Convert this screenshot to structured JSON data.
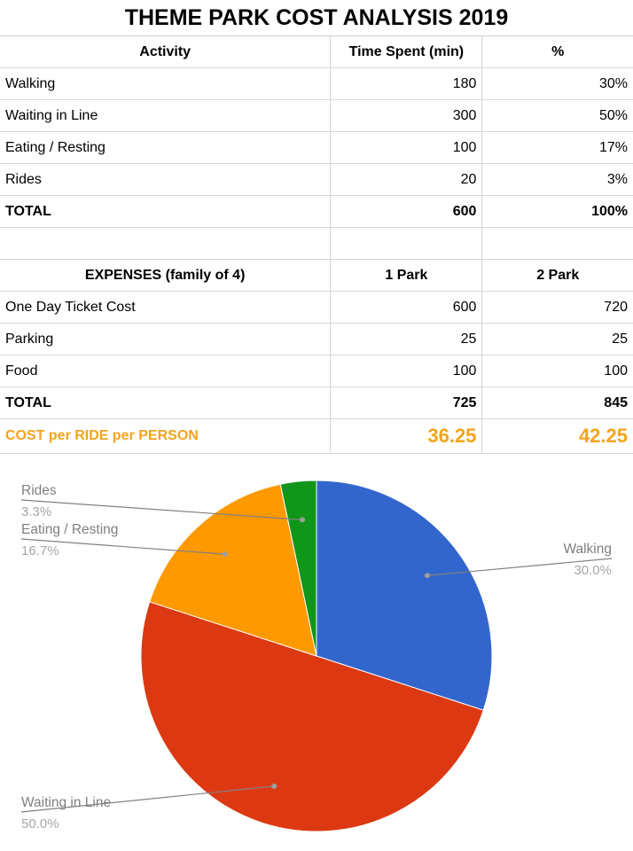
{
  "title": "THEME PARK COST ANALYSIS 2019",
  "time_table": {
    "headers": [
      "Activity",
      "Time Spent (min)",
      "%"
    ],
    "rows": [
      [
        "Walking",
        "180",
        "30%"
      ],
      [
        "Waiting in Line",
        "300",
        "50%"
      ],
      [
        "Eating / Resting",
        "100",
        "17%"
      ],
      [
        "Rides",
        "20",
        "3%"
      ]
    ],
    "total": [
      "TOTAL",
      "600",
      "100%"
    ]
  },
  "expense_table": {
    "headers": [
      "EXPENSES (family of 4)",
      "1 Park",
      "2 Park"
    ],
    "rows": [
      [
        "One  Day  Ticket Cost",
        "600",
        "720"
      ],
      [
        "Parking",
        "25",
        "25"
      ],
      [
        "Food",
        "100",
        "100"
      ]
    ],
    "total": [
      "TOTAL",
      "725",
      "845"
    ],
    "cost_per_ride": [
      "COST per RIDE per PERSON",
      "36.25",
      "42.25"
    ]
  },
  "chart_data": {
    "type": "pie",
    "slices": [
      {
        "label": "Walking",
        "value": 30.0,
        "pct_label": "30.0%",
        "color": "#3366cc"
      },
      {
        "label": "Waiting in Line",
        "value": 50.0,
        "pct_label": "50.0%",
        "color": "#dc3912"
      },
      {
        "label": "Eating / Resting",
        "value": 16.7,
        "pct_label": "16.7%",
        "color": "#ff9900"
      },
      {
        "label": "Rides",
        "value": 3.3,
        "pct_label": "3.3%",
        "color": "#109618"
      }
    ]
  }
}
